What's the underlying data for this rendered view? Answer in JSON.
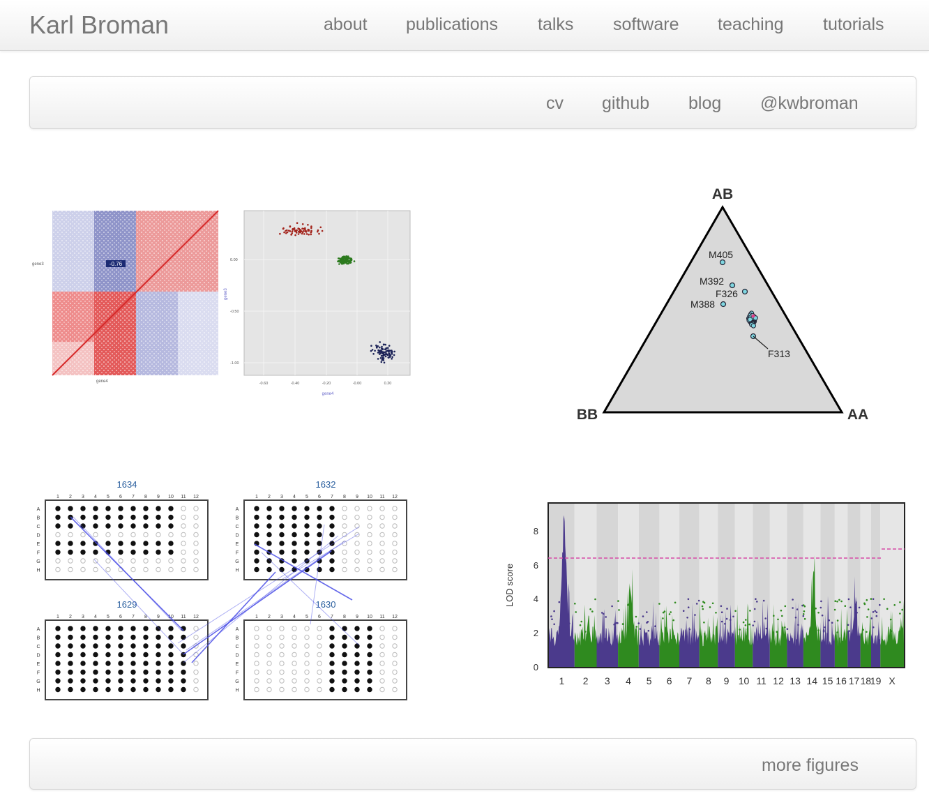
{
  "site": {
    "brand": "Karl Broman"
  },
  "nav": {
    "items": [
      {
        "label": "about"
      },
      {
        "label": "publications"
      },
      {
        "label": "talks"
      },
      {
        "label": "software"
      },
      {
        "label": "teaching"
      },
      {
        "label": "tutorials"
      }
    ]
  },
  "subnav": {
    "items": [
      {
        "label": "cv"
      },
      {
        "label": "github"
      },
      {
        "label": "blog"
      },
      {
        "label": "@kwbroman"
      }
    ]
  },
  "footer": {
    "more_label": "more figures"
  },
  "figures": {
    "corr": {
      "scatter_ylabel": "gene3",
      "scatter_xlabel": "gene4",
      "heatmap_ylabel": "gene3",
      "heatmap_xlabel": "gene4",
      "highlight": "-0.76",
      "yticks": [
        "0.00",
        "-0.50",
        "-1.00"
      ],
      "xticks": [
        "-0.60",
        "-0.40",
        "-0.20",
        "-0.00",
        "0.20"
      ]
    },
    "triangle": {
      "corners": {
        "top": "AB",
        "left": "BB",
        "right": "AA"
      },
      "labels": [
        "M405",
        "M392",
        "F326",
        "M388",
        "F313"
      ]
    },
    "plates": {
      "titles": [
        "1634",
        "1632",
        "1629",
        "1630"
      ],
      "cols": [
        "1",
        "2",
        "3",
        "4",
        "5",
        "6",
        "7",
        "8",
        "9",
        "10",
        "11",
        "12"
      ],
      "rows": [
        "A",
        "B",
        "C",
        "D",
        "E",
        "F",
        "G",
        "H"
      ]
    },
    "lod": {
      "ylabel": "LOD score",
      "yticks": [
        "0",
        "2",
        "4",
        "6",
        "8"
      ],
      "chromosomes": [
        "1",
        "2",
        "3",
        "4",
        "5",
        "6",
        "7",
        "8",
        "9",
        "10",
        "11",
        "12",
        "13",
        "14",
        "15",
        "16",
        "17",
        "18",
        "19",
        "X"
      ]
    }
  }
}
